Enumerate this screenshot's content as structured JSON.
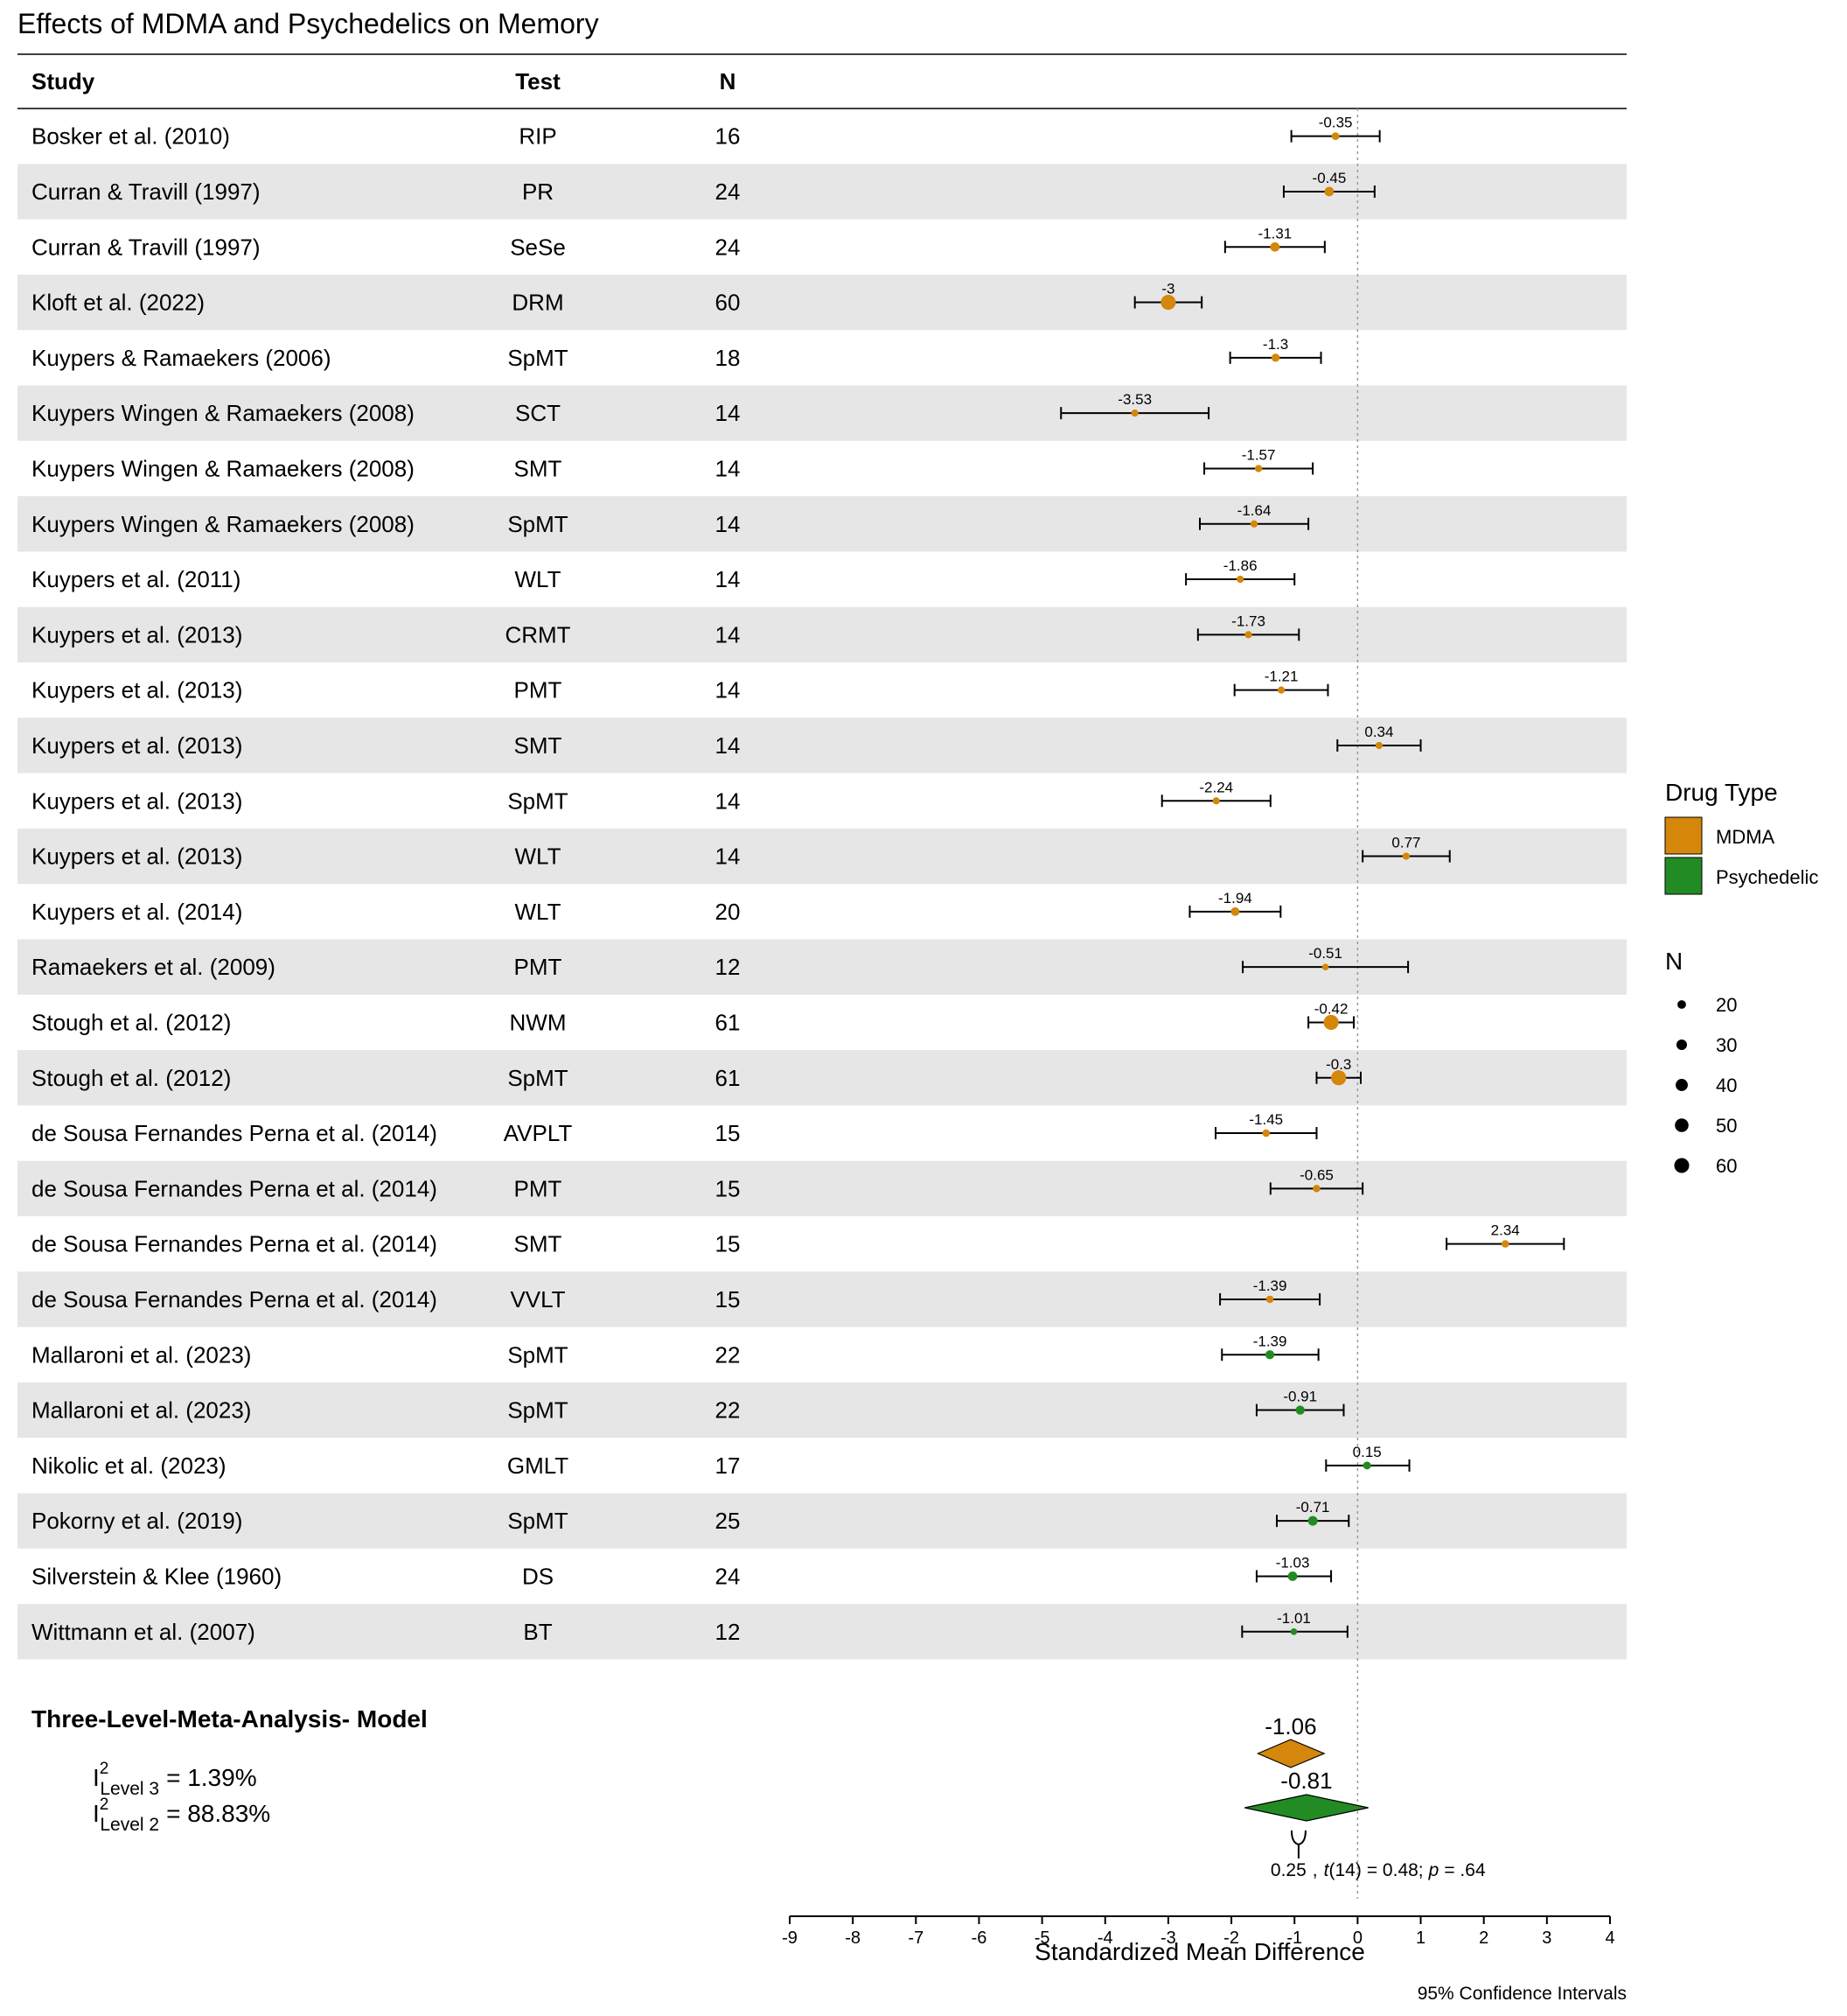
{
  "chart_data": {
    "type": "forest",
    "title": "Effects of MDMA and Psychedelics on Memory",
    "columns": {
      "study": "Study",
      "test": "Test",
      "n": "N"
    },
    "xlabel": "Standardized Mean Difference",
    "xlim": [
      -9,
      4
    ],
    "xticks": [
      "-9",
      "-8",
      "-7",
      "-6",
      "-5",
      "-4",
      "-3",
      "-2",
      "-1",
      "0",
      "1",
      "2",
      "3",
      "4"
    ],
    "footnote": "95% Confidence Intervals",
    "colors": {
      "MDMA": "#D4870A",
      "Psychedelic": "#238B23",
      "row_shade": "#E6E6E6"
    },
    "rows": [
      {
        "study": "Bosker et al. (2010)",
        "test": "RIP",
        "n": "16",
        "smd": -0.35,
        "label": "-0.35",
        "lo": -1.05,
        "hi": 0.35,
        "type": "MDMA"
      },
      {
        "study": "Curran & Travill (1997)",
        "test": "PR",
        "n": "24",
        "smd": -0.45,
        "label": "-0.45",
        "lo": -1.17,
        "hi": 0.27,
        "type": "MDMA"
      },
      {
        "study": "Curran & Travill (1997)",
        "test": "SeSe",
        "n": "24",
        "smd": -1.31,
        "label": "-1.31",
        "lo": -2.1,
        "hi": -0.52,
        "type": "MDMA"
      },
      {
        "study": "Kloft et al. (2022)",
        "test": "DRM",
        "n": "60",
        "smd": -3.0,
        "label": "-3",
        "lo": -3.53,
        "hi": -2.47,
        "type": "MDMA"
      },
      {
        "study": "Kuypers & Ramaekers (2006)",
        "test": "SpMT",
        "n": "18",
        "smd": -1.3,
        "label": "-1.3",
        "lo": -2.02,
        "hi": -0.58,
        "type": "MDMA"
      },
      {
        "study": "Kuypers Wingen & Ramaekers (2008)",
        "test": "SCT",
        "n": "14",
        "smd": -3.53,
        "label": "-3.53",
        "lo": -4.7,
        "hi": -2.36,
        "type": "MDMA"
      },
      {
        "study": "Kuypers Wingen & Ramaekers (2008)",
        "test": "SMT",
        "n": "14",
        "smd": -1.57,
        "label": "-1.57",
        "lo": -2.43,
        "hi": -0.71,
        "type": "MDMA"
      },
      {
        "study": "Kuypers Wingen & Ramaekers (2008)",
        "test": "SpMT",
        "n": "14",
        "smd": -1.64,
        "label": "-1.64",
        "lo": -2.5,
        "hi": -0.78,
        "type": "MDMA"
      },
      {
        "study": "Kuypers et al. (2011)",
        "test": "WLT",
        "n": "14",
        "smd": -1.86,
        "label": "-1.86",
        "lo": -2.72,
        "hi": -1.0,
        "type": "MDMA"
      },
      {
        "study": "Kuypers et al. (2013)",
        "test": "CRMT",
        "n": "14",
        "smd": -1.73,
        "label": "-1.73",
        "lo": -2.53,
        "hi": -0.93,
        "type": "MDMA"
      },
      {
        "study": "Kuypers et al. (2013)",
        "test": "PMT",
        "n": "14",
        "smd": -1.21,
        "label": "-1.21",
        "lo": -1.95,
        "hi": -0.47,
        "type": "MDMA"
      },
      {
        "study": "Kuypers et al. (2013)",
        "test": "SMT",
        "n": "14",
        "smd": 0.34,
        "label": "0.34",
        "lo": -0.32,
        "hi": 1.0,
        "type": "MDMA"
      },
      {
        "study": "Kuypers et al. (2013)",
        "test": "SpMT",
        "n": "14",
        "smd": -2.24,
        "label": "-2.24",
        "lo": -3.1,
        "hi": -1.38,
        "type": "MDMA"
      },
      {
        "study": "Kuypers et al. (2013)",
        "test": "WLT",
        "n": "14",
        "smd": 0.77,
        "label": "0.77",
        "lo": 0.08,
        "hi": 1.46,
        "type": "MDMA"
      },
      {
        "study": "Kuypers et al. (2014)",
        "test": "WLT",
        "n": "20",
        "smd": -1.94,
        "label": "-1.94",
        "lo": -2.66,
        "hi": -1.22,
        "type": "MDMA"
      },
      {
        "study": "Ramaekers et al. (2009)",
        "test": "PMT",
        "n": "12",
        "smd": -0.51,
        "label": "-0.51",
        "lo": -1.82,
        "hi": 0.8,
        "type": "MDMA"
      },
      {
        "study": "Stough et al. (2012)",
        "test": "NWM",
        "n": "61",
        "smd": -0.42,
        "label": "-0.42",
        "lo": -0.78,
        "hi": -0.06,
        "type": "MDMA"
      },
      {
        "study": "Stough et al. (2012)",
        "test": "SpMT",
        "n": "61",
        "smd": -0.3,
        "label": "-0.3",
        "lo": -0.65,
        "hi": 0.05,
        "type": "MDMA"
      },
      {
        "study": "de Sousa Fernandes Perna et al. (2014)",
        "test": "AVPLT",
        "n": "15",
        "smd": -1.45,
        "label": "-1.45",
        "lo": -2.25,
        "hi": -0.65,
        "type": "MDMA"
      },
      {
        "study": "de Sousa Fernandes Perna et al. (2014)",
        "test": "PMT",
        "n": "15",
        "smd": -0.65,
        "label": "-0.65",
        "lo": -1.38,
        "hi": 0.08,
        "type": "MDMA"
      },
      {
        "study": "de Sousa Fernandes Perna et al. (2014)",
        "test": "SMT",
        "n": "15",
        "smd": 2.34,
        "label": "2.34",
        "lo": 1.41,
        "hi": 3.27,
        "type": "MDMA"
      },
      {
        "study": "de Sousa Fernandes Perna et al. (2014)",
        "test": "VVLT",
        "n": "15",
        "smd": -1.39,
        "label": "-1.39",
        "lo": -2.18,
        "hi": -0.6,
        "type": "MDMA"
      },
      {
        "study": "Mallaroni et al. (2023)",
        "test": "SpMT",
        "n": "22",
        "smd": -1.39,
        "label": "-1.39",
        "lo": -2.15,
        "hi": -0.62,
        "type": "Psychedelic"
      },
      {
        "study": "Mallaroni et al. (2023)",
        "test": "SpMT",
        "n": "22",
        "smd": -0.91,
        "label": "-0.91",
        "lo": -1.6,
        "hi": -0.22,
        "type": "Psychedelic"
      },
      {
        "study": "Nikolic et al. (2023)",
        "test": "GMLT",
        "n": "17",
        "smd": 0.15,
        "label": "0.15",
        "lo": -0.5,
        "hi": 0.82,
        "type": "Psychedelic"
      },
      {
        "study": "Pokorny et al. (2019)",
        "test": "SpMT",
        "n": "25",
        "smd": -0.71,
        "label": "-0.71",
        "lo": -1.28,
        "hi": -0.14,
        "type": "Psychedelic"
      },
      {
        "study": "Silverstein & Klee (1960)",
        "test": "DS",
        "n": "24",
        "smd": -1.03,
        "label": "-1.03",
        "lo": -1.6,
        "hi": -0.42,
        "type": "Psychedelic"
      },
      {
        "study": "Wittmann et al. (2007)",
        "test": "BT",
        "n": "12",
        "smd": -1.01,
        "label": "-1.01",
        "lo": -1.83,
        "hi": -0.16,
        "type": "Psychedelic"
      }
    ],
    "model": {
      "title": "Three-Level-Meta-Analysis- Model",
      "i2_level3": {
        "sym": "I",
        "sup": "2",
        "sub": "Level 3",
        "value": "= 1.39%"
      },
      "i2_level2": {
        "sym": "I",
        "sup": "2",
        "sub": "Level 2",
        "value": "= 88.83%"
      },
      "summary": [
        {
          "type": "MDMA",
          "estimate": -1.06,
          "label": "-1.06",
          "lo": -1.58,
          "hi": -0.53
        },
        {
          "type": "Psychedelic",
          "estimate": -0.81,
          "label": "-0.81",
          "lo": -1.79,
          "hi": 0.17
        }
      ],
      "difference": {
        "value": "0.25",
        "sep": ",",
        "stat": "t",
        "df": "(14)",
        "eq": "= 0.48;",
        "p_sym": "p",
        "p_val": "= .64"
      }
    },
    "legend": {
      "color_title": "Drug Type",
      "color_entries": [
        "MDMA",
        "Psychedelic"
      ],
      "size_title": "N",
      "size_entries": [
        "20",
        "30",
        "40",
        "50",
        "60"
      ]
    }
  }
}
